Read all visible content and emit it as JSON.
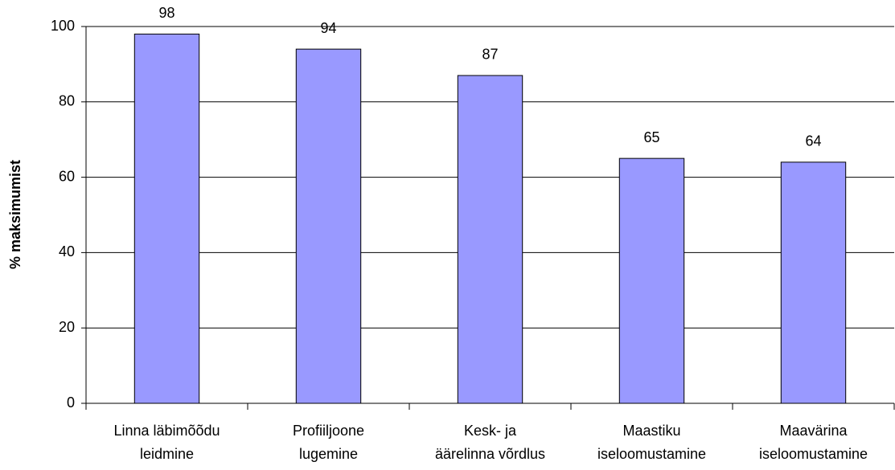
{
  "chart_data": {
    "type": "bar",
    "ylabel": "% maksimumist",
    "categories": [
      [
        "Linna läbimõõdu",
        "leidmine"
      ],
      [
        "Profiiljoone",
        "lugemine"
      ],
      [
        "Kesk- ja",
        "äärelinna võrdlus"
      ],
      [
        "Maastiku",
        "iseloomustamine"
      ],
      [
        "Maavärina",
        "iseloomustamine"
      ]
    ],
    "values": [
      98,
      94,
      87,
      65,
      64
    ],
    "color": "#9999ff",
    "ylim": [
      0,
      100
    ],
    "yticks": [
      0,
      20,
      40,
      60,
      80,
      100
    ],
    "grid": true
  }
}
